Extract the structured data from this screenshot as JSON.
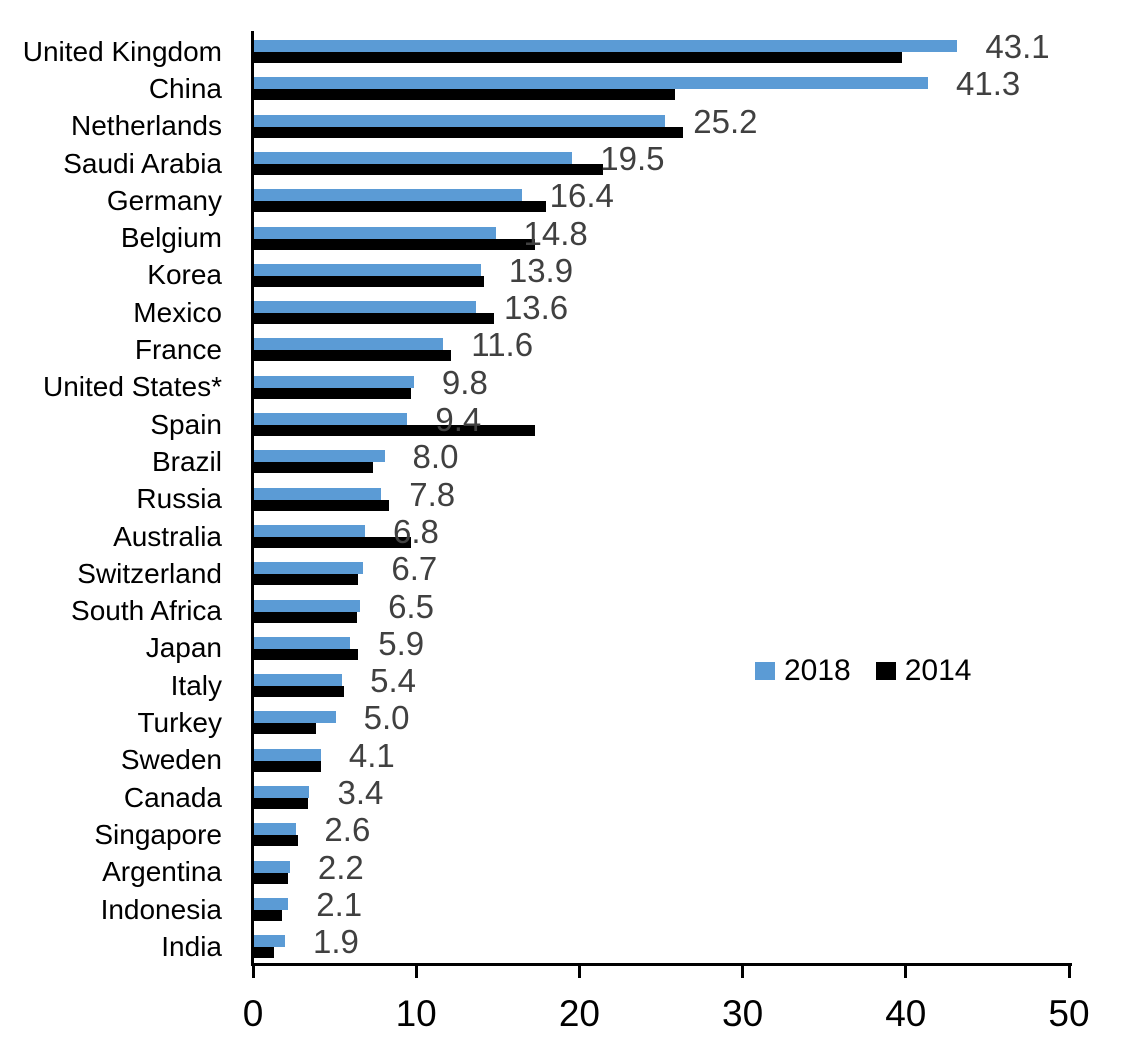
{
  "chart_data": {
    "type": "bar",
    "orientation": "horizontal-grouped",
    "title": "",
    "xlabel": "",
    "ylabel": "",
    "xlim": [
      0,
      50
    ],
    "x_ticks": [
      "0",
      "10",
      "20",
      "30",
      "40",
      "50"
    ],
    "grid": "off",
    "legend_position": "middle-right",
    "categories": [
      "United Kingdom",
      "China",
      "Netherlands",
      "Saudi Arabia",
      "Germany",
      "Belgium",
      "Korea",
      "Mexico",
      "France",
      "United States*",
      "Spain",
      "Brazil",
      "Russia",
      "Australia",
      "Switzerland",
      "South Africa",
      "Japan",
      "Italy",
      "Turkey",
      "Sweden",
      "Canada",
      "Singapore",
      "Argentina",
      "Indonesia",
      "India"
    ],
    "series": [
      {
        "name": "2018",
        "color": "#5B9BD5",
        "labeled": true,
        "values": [
          43.1,
          41.3,
          25.2,
          19.5,
          16.4,
          14.8,
          13.9,
          13.6,
          11.6,
          9.8,
          9.4,
          8.0,
          7.8,
          6.8,
          6.7,
          6.5,
          5.9,
          5.4,
          5.0,
          4.1,
          3.4,
          2.6,
          2.2,
          2.1,
          1.9
        ]
      },
      {
        "name": "2014",
        "color": "#000000",
        "labeled": false,
        "values": [
          39.7,
          25.8,
          26.3,
          21.4,
          17.9,
          17.2,
          14.1,
          14.7,
          12.1,
          9.6,
          17.2,
          7.3,
          8.3,
          9.6,
          6.4,
          6.3,
          6.4,
          5.5,
          3.8,
          4.1,
          3.3,
          2.7,
          2.1,
          1.7,
          1.2
        ]
      }
    ],
    "data_labels": [
      "43.1",
      "41.3",
      "25.2",
      "19.5",
      "16.4",
      "14.8",
      "13.9",
      "13.6",
      "11.6",
      "9.8",
      "9.4",
      "8.0",
      "7.8",
      "6.8",
      "6.7",
      "6.5",
      "5.9",
      "5.4",
      "5.0",
      "4.1",
      "3.4",
      "2.6",
      "2.2",
      "2.1",
      "1.9"
    ],
    "colors": {
      "axis": "#000000",
      "category_label": "#000000",
      "data_label": "#404040",
      "tick_label": "#000000",
      "background": "#FFFFFF"
    }
  }
}
